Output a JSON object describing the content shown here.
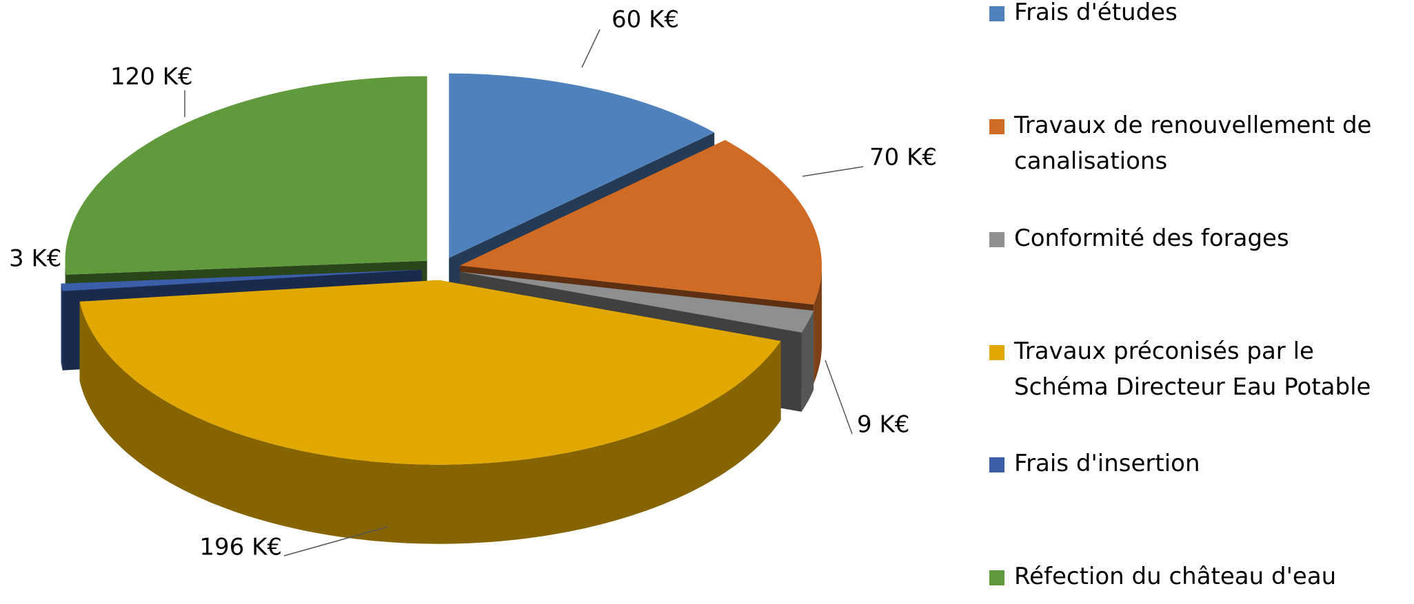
{
  "chart_data": {
    "type": "pie",
    "categories": [
      "Frais d'études",
      "Travaux de renouvellement de canalisations",
      "Conformité des forages",
      "Travaux préconisés par le Schéma Directeur Eau Potable",
      "Frais d'insertion",
      "Réfection du château d'eau"
    ],
    "values": [
      60,
      70,
      9,
      196,
      3,
      120
    ],
    "value_labels": [
      "60 K€",
      "70 K€",
      "9 K€",
      "196 K€",
      "3 K€",
      "120 K€"
    ],
    "colors": [
      "#4f81bd",
      "#d06b26",
      "#8f8f8f",
      "#e0a800",
      "#3a5ea8",
      "#609a3c"
    ],
    "legend": "right"
  }
}
